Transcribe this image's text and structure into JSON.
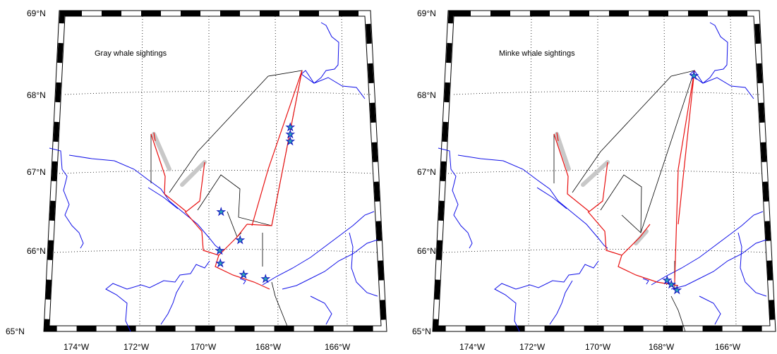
{
  "panels": [
    {
      "title": "Gray whale sightings",
      "lat_labels": [
        "69°N",
        "68°N",
        "67°N",
        "66°N",
        "65°N"
      ],
      "lon_labels": [
        "174°W",
        "172°W",
        "170°W",
        "168°W",
        "166°W"
      ]
    },
    {
      "title": "Minke whale sightings",
      "lat_labels": [
        "69°N",
        "68°N",
        "67°N",
        "66°N",
        "65°N"
      ],
      "lon_labels": [
        "174°W",
        "172°W",
        "170°W",
        "168°W",
        "166°W"
      ]
    }
  ],
  "colors": {
    "coastline": "#1010e8",
    "trackline_effort": "#e81010",
    "trackline_transit": "#000000",
    "sighting_star": "#2aa6b8"
  },
  "icons": [
    "star-icon"
  ]
}
